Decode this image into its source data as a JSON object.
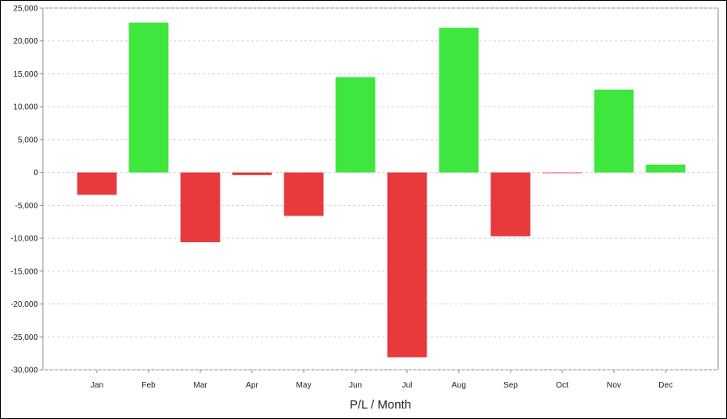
{
  "chart_data": {
    "type": "bar",
    "xlabel": "P/L / Month",
    "ylabel": "",
    "categories": [
      "Jan",
      "Feb",
      "Mar",
      "Apr",
      "May",
      "Jun",
      "Jul",
      "Aug",
      "Sep",
      "Oct",
      "Nov",
      "Dec"
    ],
    "values": [
      -3400,
      22800,
      -10600,
      -400,
      -6600,
      14500,
      -28100,
      22000,
      -9700,
      -100,
      12600,
      1200
    ],
    "ylim": [
      -30000,
      25000
    ],
    "y_ticks": [
      25000,
      20000,
      15000,
      10000,
      5000,
      0,
      -5000,
      -10000,
      -15000,
      -20000,
      -25000,
      -30000
    ],
    "y_tick_labels": [
      "25,000",
      "20,000",
      "15,000",
      "10,000",
      "5,000",
      "0",
      "-5,000",
      "-10,000",
      "-15,000",
      "-20,000",
      "-25,000",
      "-30,000"
    ],
    "grid": true,
    "legend": "none",
    "colors": {
      "positive": "#3ee63e",
      "negative": "#e8393c",
      "grid": "#d0d0d0",
      "axis": "#888888"
    }
  }
}
